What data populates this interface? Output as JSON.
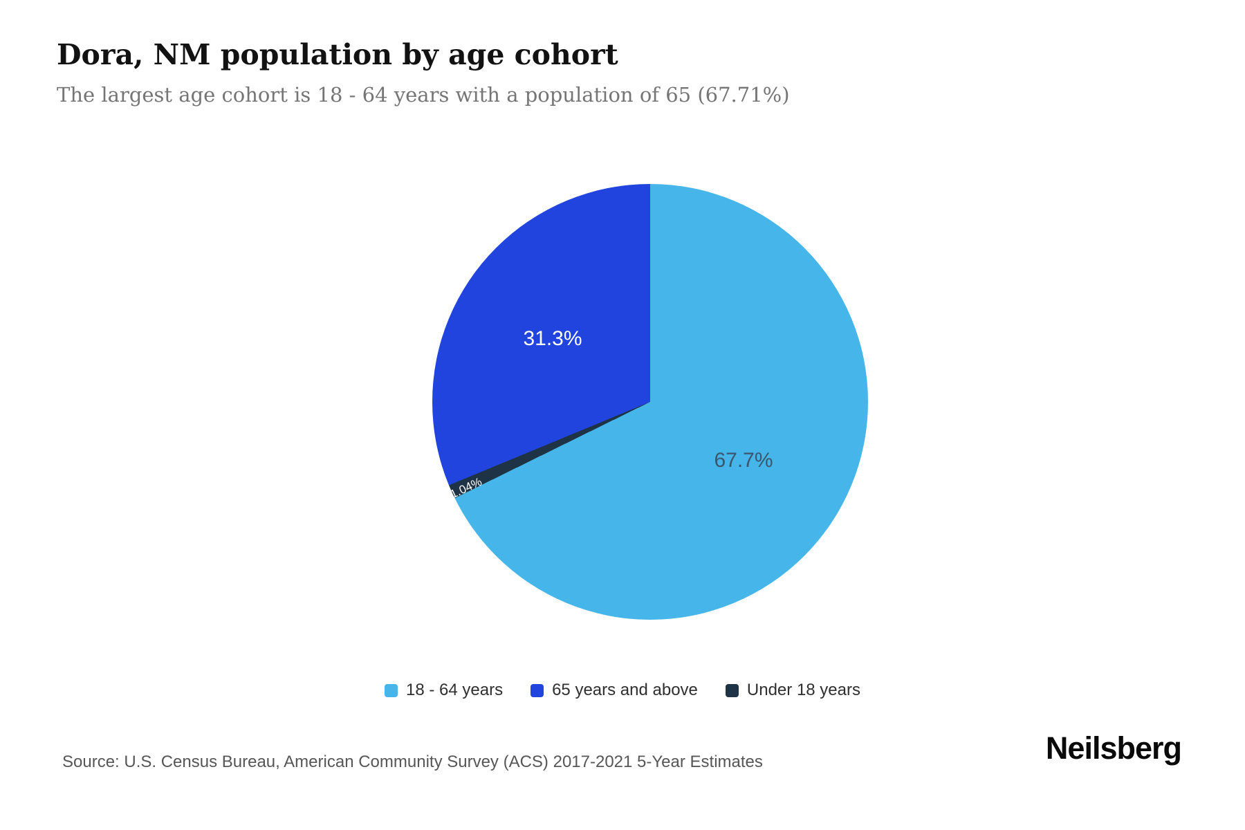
{
  "header": {
    "title": "Dora, NM population by age cohort",
    "subtitle": "The largest age cohort is 18 - 64 years with a population of 65 (67.71%)"
  },
  "chart_data": {
    "type": "pie",
    "title": "Dora, NM population by age cohort",
    "subtitle": "The largest age cohort is 18 - 64 years with a population of 65 (67.71%)",
    "direction": "clockwise",
    "start_angle_deg": 0,
    "legend_position": "bottom",
    "slices": [
      {
        "label": "18 - 64 years",
        "percent": 67.71,
        "display": "67.7%",
        "color": "#46b5e9",
        "label_color": "#3b566d"
      },
      {
        "label": "Under 18 years",
        "percent": 1.04,
        "display": "1.04%",
        "color": "#1e3345",
        "label_color": "#ffffff"
      },
      {
        "label": "65 years and above",
        "percent": 31.25,
        "display": "31.3%",
        "color": "#2044dd",
        "label_color": "#ffffff"
      }
    ]
  },
  "legend": {
    "items": [
      {
        "label": "18 - 64 years",
        "color": "#46b5e9"
      },
      {
        "label": "65 years and above",
        "color": "#2044dd"
      },
      {
        "label": "Under 18 years",
        "color": "#1e3345"
      }
    ]
  },
  "footer": {
    "source": "Source: U.S. Census Bureau, American Community Survey (ACS) 2017-2021 5-Year Estimates",
    "brand": "Neilsberg"
  }
}
